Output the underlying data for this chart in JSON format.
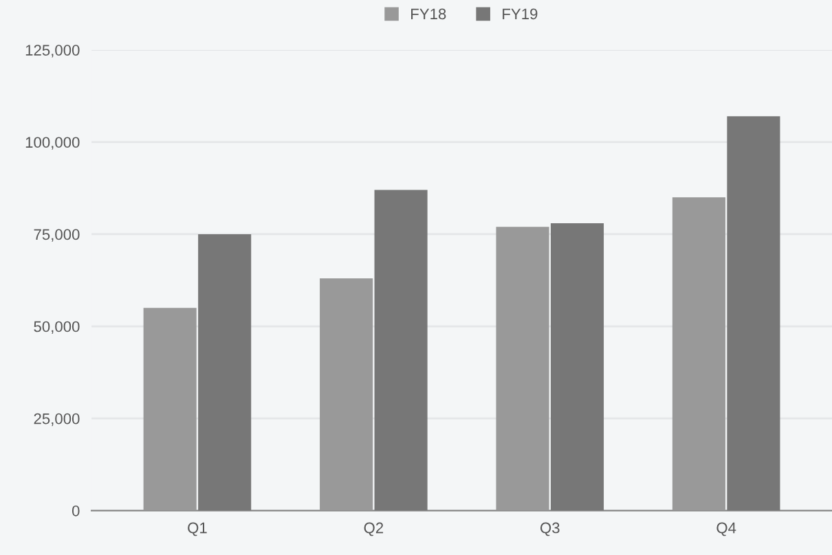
{
  "chart_data": {
    "type": "bar",
    "categories": [
      "Q1",
      "Q2",
      "Q3",
      "Q4"
    ],
    "series": [
      {
        "name": "FY18",
        "color": "#999999",
        "values": [
          55000,
          63000,
          77000,
          85000
        ]
      },
      {
        "name": "FY19",
        "color": "#777777",
        "values": [
          75000,
          87000,
          78000,
          107000
        ]
      }
    ],
    "ylim": [
      0,
      125000
    ],
    "yticks": [
      {
        "value": 0,
        "label": "0"
      },
      {
        "value": 25000,
        "label": "25,000"
      },
      {
        "value": 50000,
        "label": "50,000"
      },
      {
        "value": 75000,
        "label": "75,000"
      },
      {
        "value": 100000,
        "label": "100,000"
      },
      {
        "value": 125000,
        "label": "125,000"
      }
    ],
    "grid": "y",
    "legend": "top"
  }
}
